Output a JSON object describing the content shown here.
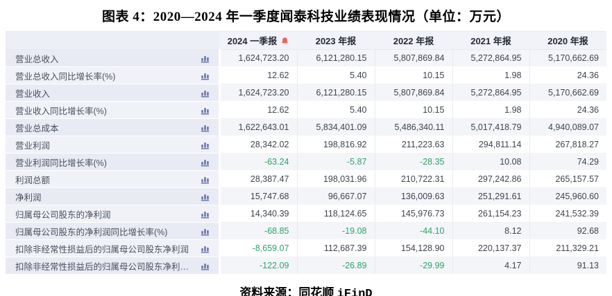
{
  "footer": {
    "prefix": "资料来源：同花顺 ",
    "brand": "iFinD"
  },
  "colors": {
    "negative_value": "#2aa36c",
    "positive_value": "#3e434d",
    "row_label": "#4a4f5a",
    "header_text": "#262a33",
    "bell_icon": "#f35d5d",
    "bar_chart_icon": "#646ea8",
    "shaded_label_bg": "#e9ebf4",
    "shaded_value_bg": "#f4f5f9",
    "wavy_underline": "#e03a2f"
  },
  "icons": {
    "bell": "alert-bell-icon",
    "bars": "bar-chart-icon"
  },
  "chart_data": {
    "type": "table",
    "title": "图表 4：2020—2024 年一季度闻泰科技业绩表现情况（单位：万元）",
    "source": "资料来源：同花顺 iFinD",
    "columns": [
      "",
      "2024 一季报",
      "2023 年报",
      "2022 年报",
      "2021 年报",
      "2020 年报"
    ],
    "rows": [
      {
        "label": "营业总收入",
        "values": [
          "1,624,723.20",
          "6,121,280.15",
          "5,807,869.84",
          "5,272,864.95",
          "5,170,662.69"
        ]
      },
      {
        "label": "营业总收入同比增长率(%)",
        "values": [
          "12.62",
          "5.40",
          "10.15",
          "1.98",
          "24.36"
        ]
      },
      {
        "label": "营业收入",
        "values": [
          "1,624,723.20",
          "6,121,280.15",
          "5,807,869.84",
          "5,272,864.95",
          "5,170,662.69"
        ]
      },
      {
        "label": "营业收入同比增长率(%)",
        "values": [
          "12.62",
          "5.40",
          "10.15",
          "1.98",
          "24.36"
        ]
      },
      {
        "label": "营业总成本",
        "values": [
          "1,622,643.01",
          "5,834,401.09",
          "5,486,340.11",
          "5,017,418.79",
          "4,940,089.07"
        ]
      },
      {
        "label": "营业利润",
        "values": [
          "28,342.02",
          "198,816.92",
          "211,223.63",
          "294,811.14",
          "267,818.27"
        ]
      },
      {
        "label": "营业利润同比增长率(%)",
        "values": [
          "-63.24",
          "-5.87",
          "-28.35",
          "10.08",
          "74.29"
        ]
      },
      {
        "label": "利润总额",
        "values": [
          "28,387.47",
          "198,031.96",
          "210,722.31",
          "297,242.86",
          "265,157.57"
        ]
      },
      {
        "label": "净利润",
        "values": [
          "15,747.68",
          "96,667.07",
          "136,009.63",
          "251,291.61",
          "245,960.60"
        ]
      },
      {
        "label": "归属母公司股东的净利润",
        "values": [
          "14,340.39",
          "118,124.65",
          "145,976.73",
          "261,154.23",
          "241,532.39"
        ]
      },
      {
        "label": "归属母公司股东的净利润同比增长率(%)",
        "values": [
          "-68.85",
          "-19.08",
          "-44.10",
          "8.12",
          "92.68"
        ]
      },
      {
        "label": "扣除非经常性损益后的归属母公司股东净利润",
        "values": [
          "-8,659.07",
          "112,687.39",
          "154,128.90",
          "220,137.37",
          "211,329.21"
        ]
      },
      {
        "label": "扣除非经常性损益后的归属母公司股东净利润同比增...",
        "values": [
          "-122.09",
          "-26.89",
          "-29.99",
          "4.17",
          "91.13"
        ]
      }
    ]
  }
}
